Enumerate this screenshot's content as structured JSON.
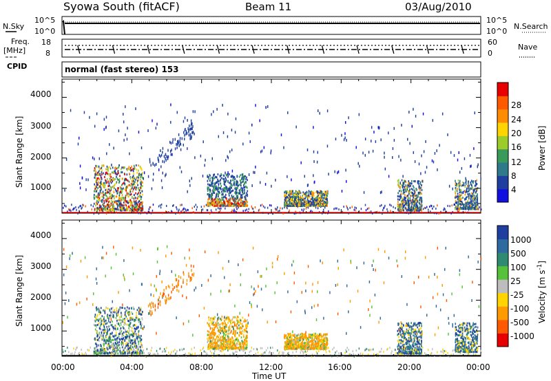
{
  "header": {
    "station": "Syowa South (fitACF)",
    "beam": "Beam 11",
    "date": "03/Aug/2010"
  },
  "noise_panel": {
    "left_label": "N.Sky",
    "right_label": "N.Search",
    "left_ticks": [
      "10^5",
      "10^0"
    ],
    "right_ticks": [
      "10^5",
      "10^0"
    ]
  },
  "freq_panel": {
    "left_label_line1": "Freq.",
    "left_label_line2": "[MHz]",
    "right_label": "Nave",
    "left_ticks": [
      "18",
      "8"
    ],
    "right_ticks": [
      "60",
      "0"
    ]
  },
  "cpid_panel": {
    "label": "CPID",
    "mode": "normal (fast stereo) 153"
  },
  "power_panel": {
    "ylabel": "Slant Range [km]",
    "yticks": [
      "1000",
      "2000",
      "3000",
      "4000"
    ],
    "colorbar_label": "Power [dB]",
    "colorbar_ticks": [
      "4",
      "8",
      "12",
      "16",
      "20",
      "24",
      "28"
    ],
    "colors": [
      "#1010e0",
      "#1f3fa0",
      "#2e7a8a",
      "#3a9a5a",
      "#9ccc2a",
      "#ffd400",
      "#ff8c00",
      "#ff5a00",
      "#e80000"
    ]
  },
  "velocity_panel": {
    "ylabel": "Slant Range [km]",
    "yticks": [
      "1000",
      "2000",
      "3000",
      "4000"
    ],
    "colorbar_label": "Velocity [m s",
    "colorbar_label_sup": "-1",
    "colorbar_label_tail": "]",
    "colorbar_ticks": [
      "1000",
      "500",
      "100",
      "25",
      "-25",
      "-100",
      "-500",
      "-1000"
    ],
    "colors": [
      "#1f3fa0",
      "#2e6aa0",
      "#2e8a70",
      "#56c23a",
      "#bdbdbd",
      "#ffd400",
      "#ff9a00",
      "#ff5a00",
      "#e80000"
    ]
  },
  "xaxis": {
    "label": "Time UT",
    "ticks": [
      "00:00",
      "04:00",
      "08:00",
      "12:00",
      "16:00",
      "20:00",
      "00:00"
    ]
  },
  "chart_data": {
    "type": "heatmap",
    "title": "Syowa South (fitACF)",
    "xlabel": "Time UT",
    "ylabel": "Slant Range [km]",
    "xlim": [
      "00:00",
      "00:00"
    ],
    "ylim": [
      180,
      4600
    ],
    "panels": [
      "Power [dB]",
      "Velocity [m s^-1]"
    ],
    "power_range_db": [
      0,
      30
    ],
    "velocity_range": [
      -1000,
      1000
    ],
    "scatter_regions": [
      {
        "start_hour": 1.8,
        "end_hour": 4.6,
        "range_km": [
          300,
          1800
        ],
        "note": "power 8-28, velocity mixed"
      },
      {
        "start_hour": 8.3,
        "end_hour": 10.6,
        "range_km": [
          450,
          1500
        ],
        "note": "power 12-28, velocity -100"
      },
      {
        "start_hour": 12.7,
        "end_hour": 15.2,
        "range_km": [
          450,
          950
        ],
        "note": "power 8-24, velocity -100"
      },
      {
        "start_hour": 19.2,
        "end_hour": 20.6,
        "range_km": [
          300,
          1300
        ],
        "note": "power 8-16"
      },
      {
        "start_hour": 22.5,
        "end_hour": 23.8,
        "range_km": [
          350,
          1300
        ],
        "note": "power 8-20"
      }
    ]
  }
}
